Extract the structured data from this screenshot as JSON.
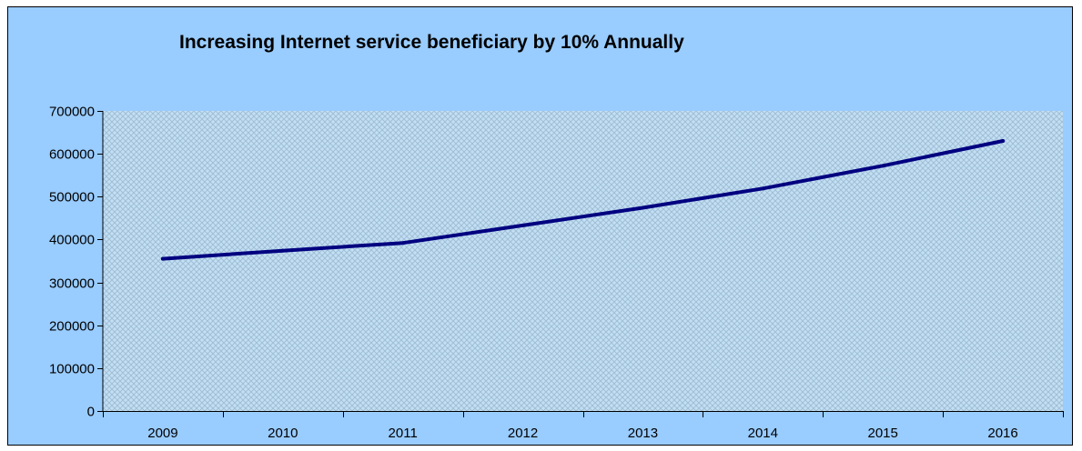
{
  "chart_data": {
    "type": "line",
    "title": "Increasing Internet service beneficiary by 10% Annually",
    "xlabel": "",
    "ylabel": "",
    "categories": [
      "2009",
      "2010",
      "2011",
      "2012",
      "2013",
      "2014",
      "2015",
      "2016"
    ],
    "series": [
      {
        "values": [
          355000,
          374000,
          392000,
          433000,
          474000,
          519000,
          572000,
          630000
        ]
      }
    ],
    "ylim": [
      0,
      700000
    ],
    "yticks": [
      "0",
      "100000",
      "200000",
      "300000",
      "400000",
      "500000",
      "600000",
      "700000"
    ],
    "grid": false,
    "legend": "none",
    "colors": {
      "chart_background": "#99ccff",
      "plot_background": "#c4dff4",
      "plot_hatch": "#9fbfd6",
      "line": "#000080"
    }
  }
}
